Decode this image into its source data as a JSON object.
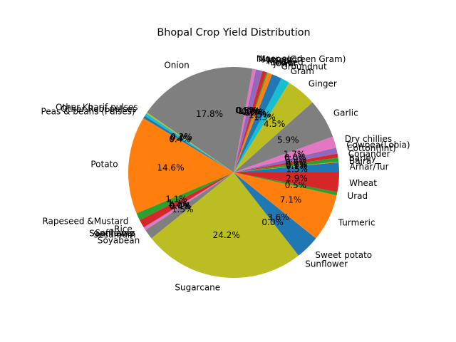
{
  "chart_data": {
    "type": "pie",
    "title": "Bhopal Crop Yield Distribution",
    "start_angle_deg": 0,
    "direction": "counterclockwise",
    "categories": [
      "Arhar/Tur",
      "Bajra",
      "Barley",
      "Coriander",
      "Cotton(lint)",
      "Cowpea(Lobia)",
      "Dry chillies",
      "Garlic",
      "Ginger",
      "Gram",
      "Groundnut",
      "Jowar",
      "Linseed",
      "Maize",
      "Masoor",
      "Moong(Green Gram)",
      "Niger seed",
      "Onion",
      "Other Kharif pulses",
      "Other Rabi pulses",
      "Peas & beans (Pulses)",
      "Potato",
      "Rapeseed &Mustard",
      "Rice",
      "Safflower",
      "Sannhamp",
      "Sesamum",
      "Soyabean",
      "Sugarcane",
      "Sunflower",
      "Sweet potato",
      "Turmeric",
      "Urad",
      "Wheat"
    ],
    "values": [
      1.5,
      0.1,
      0.6,
      0.6,
      0.9,
      0.0,
      1.7,
      5.9,
      4.5,
      1.3,
      1.5,
      0.7,
      0.2,
      0.6,
      1.0,
      0.0,
      0.5,
      17.8,
      0.2,
      0.4,
      0.4,
      14.6,
      1.1,
      1.2,
      0.1,
      0.0,
      0.4,
      1.5,
      24.2,
      0.0,
      3.6,
      7.1,
      0.5,
      2.9
    ],
    "pct_labels": [
      "1.5%",
      "0.1%",
      "0.6%",
      "0.6%",
      "0.9%",
      "0.0%",
      "1.7%",
      "5.9%",
      "4.5%",
      "1.3%",
      "1.5%",
      "0.7%",
      "0.2%",
      "0.6%",
      "1.0%",
      "0.0%",
      "0.5%",
      "17.8%",
      "0.2%",
      "0.4%",
      "0.4%",
      "14.6%",
      "1.1%",
      "1.2%",
      "0.1%",
      "0.0%",
      "0.4%",
      "1.5%",
      "24.2%",
      "0.0%",
      "3.6%",
      "7.1%",
      "0.5%",
      "2.9%"
    ],
    "colors": [
      "#1f77b4",
      "#ff7f0e",
      "#2ca02c",
      "#d62728",
      "#9467bd",
      "#8c564b",
      "#e377c2",
      "#7f7f7f",
      "#bcbd22",
      "#17becf"
    ]
  }
}
